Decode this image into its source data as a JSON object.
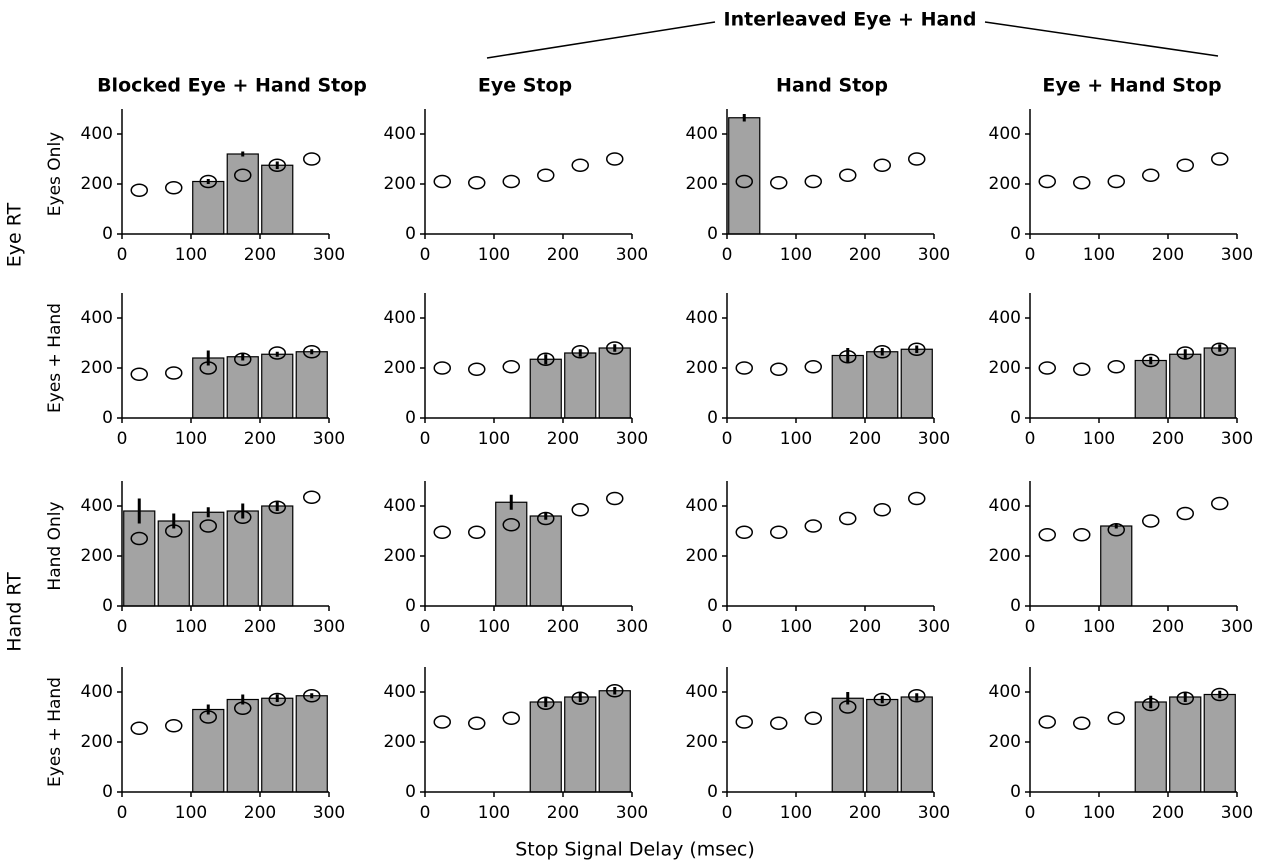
{
  "figure": {
    "interleaved": "Interleaved Eye + Hand",
    "columns": [
      "Blocked Eye + Hand Stop",
      "Eye Stop",
      "Hand Stop",
      "Eye + Hand Stop"
    ],
    "rows": [
      "Eyes Only",
      "Eyes + Hand",
      "Hand Only",
      "Eyes + Hand"
    ],
    "groups": [
      "Eye RT",
      "Hand RT"
    ],
    "xlabel": "Stop Signal Delay (msec)"
  },
  "chart_data": {
    "type": "bar",
    "x": [
      25,
      75,
      125,
      175,
      225,
      275
    ],
    "xlim": [
      0,
      300
    ],
    "xticks": [
      0,
      100,
      200,
      300
    ],
    "ylim": [
      0,
      500
    ],
    "yticks": [
      0,
      200,
      400
    ],
    "bar_color": "#a3a3a3",
    "panels": [
      {
        "circles": [
          175,
          185,
          210,
          235,
          275,
          300
        ],
        "bars": [
          null,
          null,
          210,
          320,
          275,
          null
        ],
        "bar_errors": [
          null,
          null,
          10,
          10,
          15,
          null
        ]
      },
      {
        "circles": [
          210,
          205,
          210,
          235,
          275,
          300
        ],
        "bars": [
          null,
          null,
          null,
          null,
          null,
          null
        ],
        "bar_errors": [
          null,
          null,
          null,
          null,
          null,
          null
        ]
      },
      {
        "circles": [
          210,
          205,
          210,
          235,
          275,
          300
        ],
        "bars": [
          465,
          null,
          null,
          null,
          null,
          null
        ],
        "bar_errors": [
          15,
          null,
          null,
          null,
          null,
          null
        ]
      },
      {
        "circles": [
          210,
          205,
          210,
          235,
          275,
          300
        ],
        "bars": [
          null,
          null,
          null,
          null,
          null,
          null
        ],
        "bar_errors": [
          null,
          null,
          null,
          null,
          null,
          null
        ]
      },
      {
        "circles": [
          175,
          180,
          200,
          235,
          260,
          265
        ],
        "bars": [
          null,
          null,
          240,
          245,
          255,
          265
        ],
        "bar_errors": [
          null,
          null,
          30,
          15,
          10,
          10
        ]
      },
      {
        "circles": [
          200,
          195,
          205,
          235,
          265,
          280
        ],
        "bars": [
          null,
          null,
          null,
          235,
          260,
          280
        ],
        "bar_errors": [
          null,
          null,
          null,
          20,
          15,
          15
        ]
      },
      {
        "circles": [
          200,
          195,
          205,
          245,
          265,
          275
        ],
        "bars": [
          null,
          null,
          null,
          250,
          265,
          275
        ],
        "bar_errors": [
          null,
          null,
          null,
          30,
          15,
          15
        ]
      },
      {
        "circles": [
          200,
          195,
          205,
          230,
          260,
          275
        ],
        "bars": [
          null,
          null,
          null,
          230,
          255,
          280
        ],
        "bar_errors": [
          null,
          null,
          null,
          15,
          20,
          15
        ]
      },
      {
        "circles": [
          270,
          300,
          320,
          355,
          395,
          435
        ],
        "bars": [
          380,
          340,
          375,
          380,
          400,
          null
        ],
        "bar_errors": [
          50,
          30,
          20,
          30,
          20,
          null
        ]
      },
      {
        "circles": [
          295,
          295,
          325,
          350,
          385,
          430
        ],
        "bars": [
          null,
          null,
          415,
          360,
          null,
          null
        ],
        "bar_errors": [
          null,
          null,
          30,
          15,
          null,
          null
        ]
      },
      {
        "circles": [
          295,
          295,
          320,
          350,
          385,
          430
        ],
        "bars": [
          null,
          null,
          null,
          null,
          null,
          null
        ],
        "bar_errors": [
          null,
          null,
          null,
          null,
          null,
          null
        ]
      },
      {
        "circles": [
          285,
          285,
          305,
          340,
          370,
          410
        ],
        "bars": [
          null,
          null,
          320,
          null,
          null,
          null
        ],
        "bar_errors": [
          null,
          null,
          10,
          null,
          null,
          null
        ]
      },
      {
        "circles": [
          255,
          265,
          300,
          335,
          370,
          385
        ],
        "bars": [
          null,
          null,
          330,
          370,
          375,
          385
        ],
        "bar_errors": [
          null,
          null,
          20,
          20,
          15,
          10
        ]
      },
      {
        "circles": [
          280,
          275,
          295,
          355,
          375,
          405
        ],
        "bars": [
          null,
          null,
          null,
          360,
          380,
          405
        ],
        "bar_errors": [
          null,
          null,
          null,
          20,
          20,
          15
        ]
      },
      {
        "circles": [
          280,
          275,
          295,
          340,
          370,
          385
        ],
        "bars": [
          null,
          null,
          null,
          375,
          370,
          380
        ],
        "bar_errors": [
          null,
          null,
          null,
          25,
          15,
          15
        ]
      },
      {
        "circles": [
          280,
          275,
          295,
          350,
          375,
          390
        ],
        "bars": [
          null,
          null,
          null,
          360,
          380,
          390
        ],
        "bar_errors": [
          null,
          null,
          null,
          25,
          20,
          15
        ]
      }
    ]
  }
}
